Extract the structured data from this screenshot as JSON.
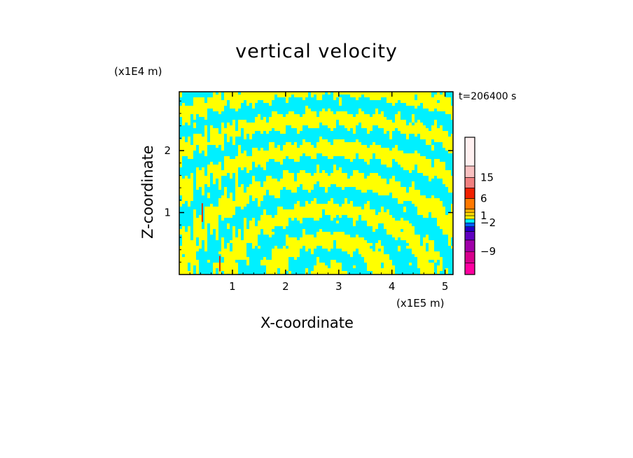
{
  "chart_data": {
    "type": "heatmap",
    "title": "vertical velocity",
    "xlabel": "X-coordinate",
    "ylabel": "Z-coordinate",
    "x_unit": "(x1E5 m)",
    "y_unit": "(x1E4 m)",
    "time_label": "t=206400 s",
    "xlim": [
      0,
      5.15
    ],
    "ylim": [
      0,
      2.95
    ],
    "x_ticks": [
      1,
      2,
      3,
      4,
      5
    ],
    "y_ticks": [
      1,
      2
    ],
    "colorbar": {
      "labels": [
        {
          "text": "15",
          "value": 15
        },
        {
          "text": "6",
          "value": 6
        },
        {
          "text": "1",
          "value": 1
        },
        {
          "text": "−2",
          "value": -2
        },
        {
          "text": "−9",
          "value": -9
        }
      ],
      "bands": [
        {
          "color": "#ff00a0"
        },
        {
          "color": "#d8008c"
        },
        {
          "color": "#a000a8"
        },
        {
          "color": "#6000c0"
        },
        {
          "color": "#2000c8"
        },
        {
          "color": "#0060ff"
        },
        {
          "color": "#00f0ff"
        },
        {
          "color": "#ffff00"
        },
        {
          "color": "#ffd800"
        },
        {
          "color": "#ffb000"
        },
        {
          "color": "#ff7800"
        },
        {
          "color": "#f02000"
        },
        {
          "color": "#f08080"
        },
        {
          "color": "#f8c0c0"
        },
        {
          "color": "#fff0f0"
        }
      ]
    },
    "field_colors": {
      "positive": "#ffff00",
      "negative": "#00f0ff"
    }
  }
}
